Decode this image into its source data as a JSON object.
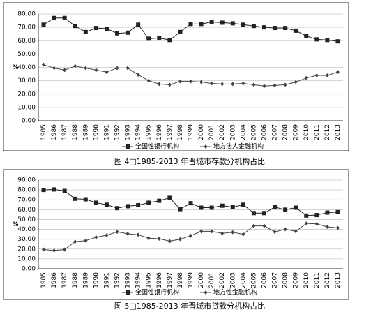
{
  "chart_data": [
    {
      "type": "line",
      "title": "图 4□1985-2013 年晋城市存款分机构占比",
      "ylabel": "%",
      "categories": [
        "1985",
        "1986",
        "1987",
        "1988",
        "1989",
        "1990",
        "1991",
        "1992",
        "1993",
        "1994",
        "1995",
        "1996",
        "1997",
        "1998",
        "1999",
        "2000",
        "2001",
        "2002",
        "2003",
        "2004",
        "2005",
        "2006",
        "2007",
        "2008",
        "2009",
        "2010",
        "2011",
        "2012",
        "2013"
      ],
      "series": [
        {
          "name": "全国性银行机构",
          "color": "#222222",
          "marker": "square",
          "values": [
            72,
            77,
            77,
            71,
            66.5,
            69.5,
            69,
            65.5,
            66,
            72,
            61.5,
            62,
            60.5,
            66.5,
            72.5,
            72.5,
            74,
            73.5,
            73,
            72,
            71,
            70,
            69.5,
            69.5,
            67.5,
            63.5,
            61,
            60.5,
            59.5
          ]
        },
        {
          "name": "地方法人金融机构",
          "color": "#444444",
          "marker": "diamond",
          "values": [
            42,
            39.5,
            38,
            41,
            39.5,
            38,
            36.5,
            39.5,
            39.5,
            34.5,
            30,
            27.5,
            27,
            29.5,
            29.5,
            29,
            28,
            27.5,
            27.5,
            28,
            27,
            26,
            26.5,
            27,
            29,
            32,
            34,
            34,
            36.5
          ]
        }
      ],
      "ylim": [
        0,
        80
      ],
      "yticks": [
        {
          "value": 0,
          "label": "0.00"
        },
        {
          "value": 10,
          "label": "10.00"
        },
        {
          "value": 20,
          "label": "20.00"
        },
        {
          "value": 30,
          "label": "30.00"
        },
        {
          "value": 40,
          "label": "40.00"
        },
        {
          "value": 50,
          "label": "50.00"
        },
        {
          "value": 60,
          "label": "60.00"
        },
        {
          "value": 70,
          "label": "70.00"
        },
        {
          "value": 80,
          "label": "80.00"
        }
      ],
      "grid": true
    },
    {
      "type": "line",
      "title": "图 5□1985-2013 年晋城市贷款分机构占比",
      "ylabel": "%",
      "categories": [
        "1985",
        "1986",
        "1987",
        "1988",
        "1989",
        "1990",
        "1991",
        "1992",
        "1993",
        "1994",
        "1995",
        "1996",
        "1997",
        "1998",
        "1999",
        "2000",
        "2001",
        "2002",
        "2003",
        "2004",
        "2005",
        "2006",
        "2007",
        "2008",
        "2009",
        "2010",
        "2011",
        "2012",
        "2013"
      ],
      "series": [
        {
          "name": "全国性银行机构",
          "color": "#222222",
          "marker": "square",
          "values": [
            80,
            80.5,
            79,
            71,
            70.5,
            67,
            65,
            61.5,
            63.5,
            64.5,
            67,
            69,
            72,
            60.5,
            66.5,
            62,
            62,
            64,
            62.5,
            65,
            56.5,
            56.5,
            62.5,
            60,
            62,
            54,
            54.5,
            57,
            57.5
          ]
        },
        {
          "name": "地方性金融机构",
          "color": "#444444",
          "marker": "diamond",
          "values": [
            19.5,
            18.5,
            19.5,
            27.5,
            28.5,
            32,
            34,
            37.5,
            35.5,
            34.5,
            31,
            30.5,
            28,
            30,
            33.5,
            38,
            38,
            36,
            37,
            35,
            43.5,
            43.5,
            37.5,
            40,
            38,
            46,
            45.5,
            42.5,
            41.5
          ]
        }
      ],
      "ylim": [
        0,
        90
      ],
      "yticks": [
        {
          "value": 0,
          "label": "0.00"
        },
        {
          "value": 10,
          "label": "10.00"
        },
        {
          "value": 20,
          "label": "20.00"
        },
        {
          "value": 30,
          "label": "30.00"
        },
        {
          "value": 40,
          "label": "40.00"
        },
        {
          "value": 50,
          "label": "50.00"
        },
        {
          "value": 60,
          "label": "60.00"
        },
        {
          "value": 70,
          "label": "70.00"
        },
        {
          "value": 80,
          "label": "80.00"
        },
        {
          "value": 90,
          "label": "90.00"
        }
      ],
      "grid": true
    }
  ]
}
